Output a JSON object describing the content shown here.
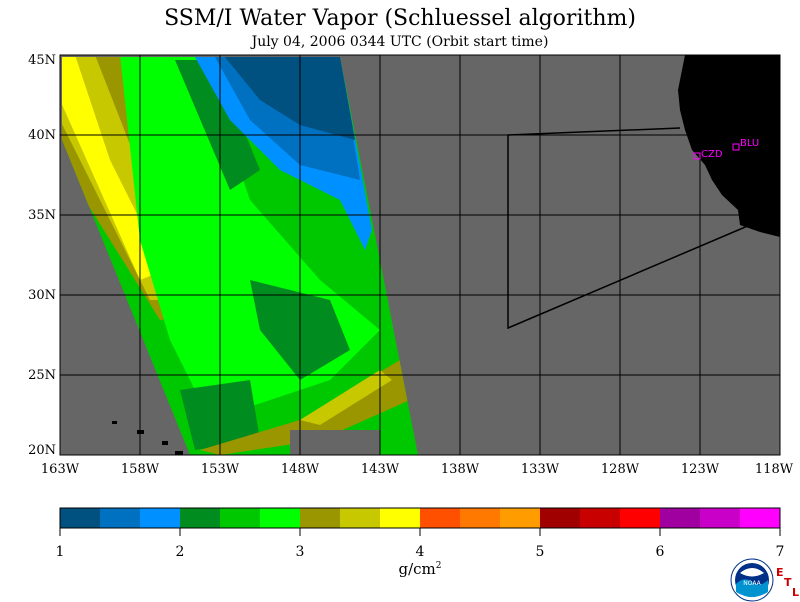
{
  "title": "SSM/I Water Vapor (Schluessel algorithm)",
  "subtitle": "July 04, 2006  0344 UTC  (Orbit start time)",
  "map": {
    "lat_labels": [
      "45N",
      "40N",
      "35N",
      "30N",
      "25N",
      "20N"
    ],
    "lon_labels": [
      "163W",
      "158W",
      "153W",
      "148W",
      "143W",
      "138W",
      "133W",
      "128W",
      "123W",
      "118W"
    ],
    "stations": [
      {
        "id": "CZD"
      },
      {
        "id": "BLU"
      }
    ],
    "colors": {
      "ocean_no_data": "#666666",
      "land": "#000000",
      "station_marker": "#ff00ff",
      "grid": "#000000"
    }
  },
  "colorbar": {
    "colors": [
      "#005080",
      "#0070c0",
      "#0090ff",
      "#008c1e",
      "#00c800",
      "#00ff00",
      "#9a9600",
      "#c8c800",
      "#ffff00",
      "#ff5000",
      "#ff7800",
      "#ff9c00",
      "#a00000",
      "#c80000",
      "#ff0000",
      "#a000a0",
      "#c800c8",
      "#ff00ff"
    ],
    "tick_labels": [
      "1",
      "2",
      "3",
      "4",
      "5",
      "6",
      "7"
    ],
    "range": [
      1,
      7
    ],
    "units_base": "g/cm",
    "units_sup": "2"
  },
  "logo": {
    "text": "NOAA",
    "credit": [
      "E",
      "T",
      "L"
    ]
  }
}
